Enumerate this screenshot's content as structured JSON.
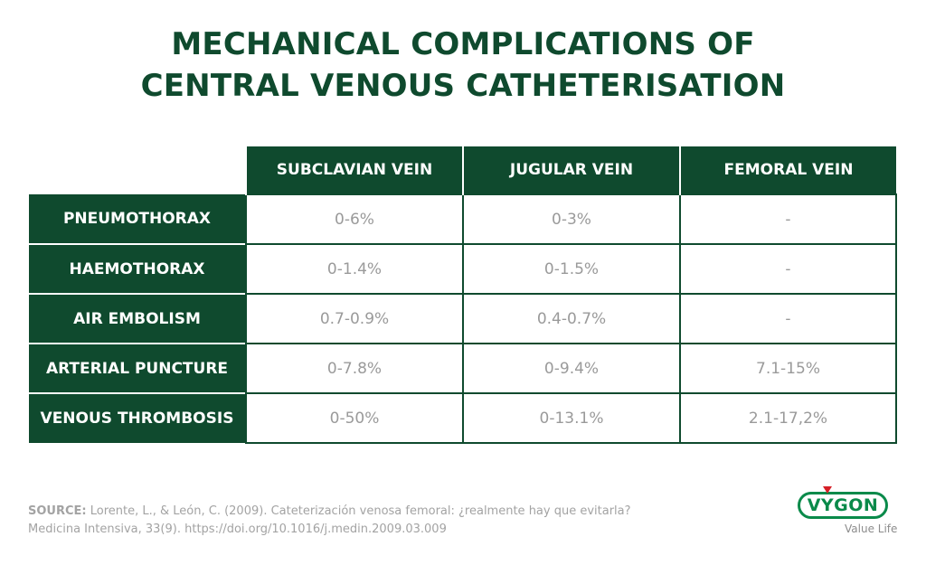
{
  "title": {
    "line1": "MECHANICAL COMPLICATIONS OF",
    "line2": "CENTRAL VENOUS CATHETERISATION"
  },
  "table": {
    "columns": [
      "SUBCLAVIAN VEIN",
      "JUGULAR VEIN",
      "FEMORAL VEIN"
    ],
    "rows": [
      {
        "label": "PNEUMOTHORAX",
        "values": [
          "0-6%",
          "0-3%",
          "-"
        ]
      },
      {
        "label": "HAEMOTHORAX",
        "values": [
          "0-1.4%",
          "0-1.5%",
          "-"
        ]
      },
      {
        "label": "AIR EMBOLISM",
        "values": [
          "0.7-0.9%",
          "0.4-0.7%",
          "-"
        ]
      },
      {
        "label": "ARTERIAL PUNCTURE",
        "values": [
          "0-7.8%",
          "0-9.4%",
          "7.1-15%"
        ]
      },
      {
        "label": "VENOUS THROMBOSIS",
        "values": [
          "0-50%",
          "0-13.1%",
          "2.1-17,2%"
        ]
      }
    ]
  },
  "source": {
    "label": "SOURCE:",
    "line1": " Lorente, L., & León, C. (2009). Cateterización venosa femoral: ¿realmente hay que evitarla?",
    "line2": "Medicina Intensiva, 33(9). https://doi.org/10.1016/j.medin.2009.03.009"
  },
  "logo": {
    "brand": "VYGON",
    "tagline": "Value Life"
  },
  "colors": {
    "dark_green": "#0f4a2e",
    "brand_green": "#0a8a4a",
    "brand_red": "#d61f26"
  }
}
